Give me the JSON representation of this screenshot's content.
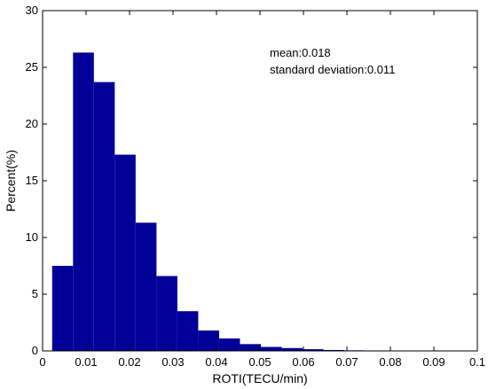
{
  "chart_data": {
    "type": "bar",
    "title": "",
    "xlabel": "ROTI(TECU/min)",
    "ylabel": "Percent(%)",
    "xlim": [
      0,
      0.1
    ],
    "ylim": [
      0,
      30
    ],
    "xticks": [
      "0",
      "0.01",
      "0.02",
      "0.03",
      "0.04",
      "0.05",
      "0.06",
      "0.07",
      "0.08",
      "0.09",
      "0.1"
    ],
    "yticks": [
      "0",
      "5",
      "10",
      "15",
      "20",
      "25",
      "30"
    ],
    "grid": false,
    "bar_color": "#000099",
    "bin_width": 0.0048,
    "bins": [
      {
        "x": 0.0046,
        "value": 7.5
      },
      {
        "x": 0.0094,
        "value": 26.3
      },
      {
        "x": 0.0142,
        "value": 23.7
      },
      {
        "x": 0.019,
        "value": 17.3
      },
      {
        "x": 0.0238,
        "value": 11.3
      },
      {
        "x": 0.0286,
        "value": 6.6
      },
      {
        "x": 0.0334,
        "value": 3.5
      },
      {
        "x": 0.0382,
        "value": 1.8
      },
      {
        "x": 0.043,
        "value": 1.1
      },
      {
        "x": 0.0478,
        "value": 0.6
      },
      {
        "x": 0.0526,
        "value": 0.35
      },
      {
        "x": 0.0574,
        "value": 0.25
      },
      {
        "x": 0.0622,
        "value": 0.15
      },
      {
        "x": 0.067,
        "value": 0.08
      },
      {
        "x": 0.0718,
        "value": 0.05
      },
      {
        "x": 0.0766,
        "value": 0.04
      },
      {
        "x": 0.0814,
        "value": 0.03
      },
      {
        "x": 0.0862,
        "value": 0.03
      },
      {
        "x": 0.091,
        "value": 0.02
      },
      {
        "x": 0.0958,
        "value": 0.02
      }
    ],
    "annotations": [
      "mean:0.018",
      "standard deviation:0.011"
    ]
  }
}
